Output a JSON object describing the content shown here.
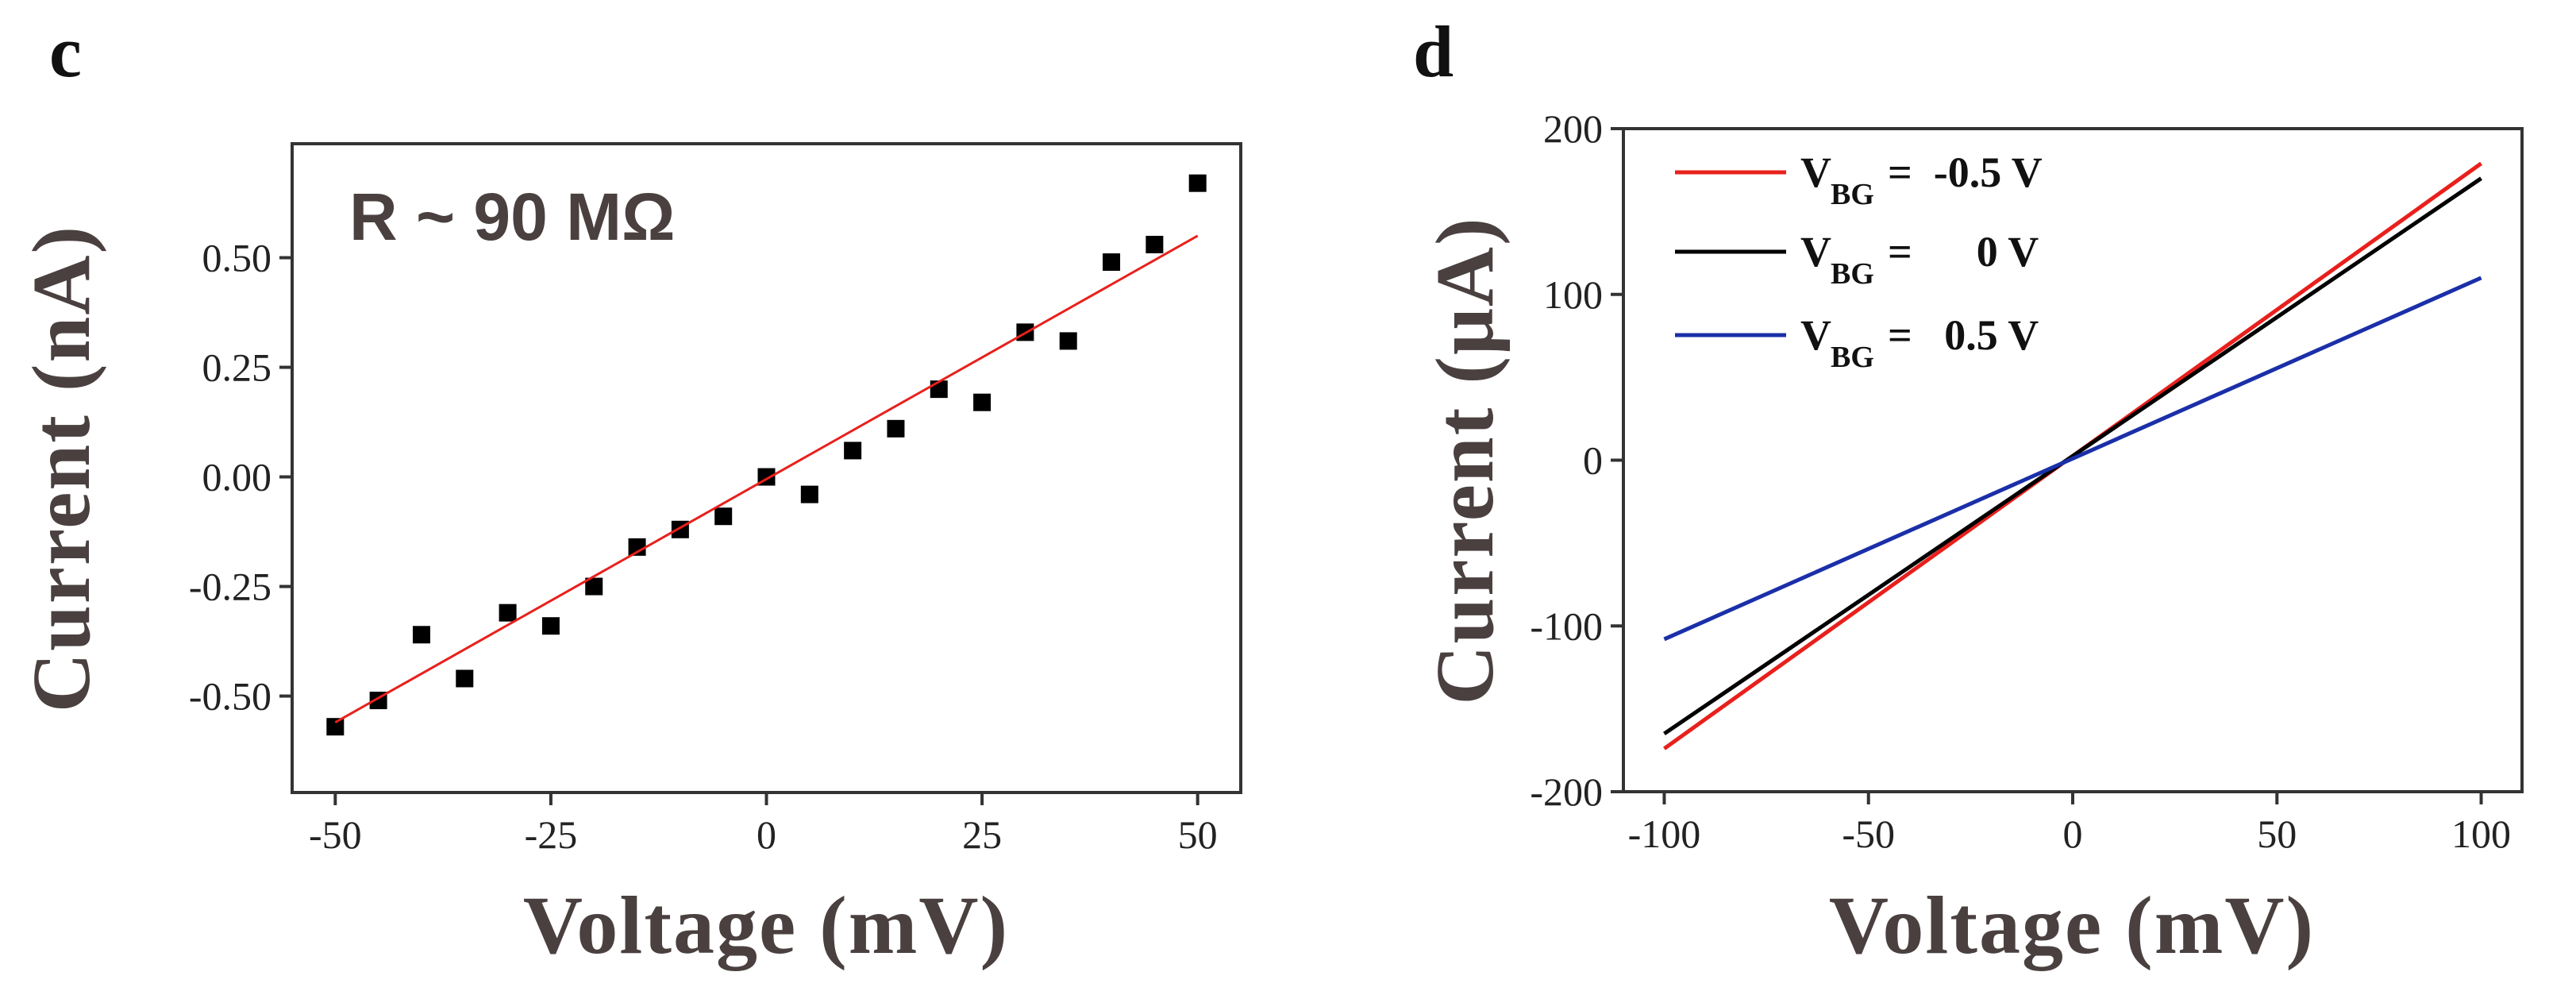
{
  "chart_data": [
    {
      "type": "scatter",
      "panel_label": "c",
      "xlabel": "Voltage (mV)",
      "ylabel": "Current (nA)",
      "xlim": [
        -55,
        55
      ],
      "ylim": [
        -0.72,
        0.76
      ],
      "x_ticks": [
        -50,
        -25,
        0,
        25,
        50
      ],
      "x_tick_labels": [
        "-50",
        "-25",
        "0",
        "25",
        "50"
      ],
      "y_ticks": [
        -0.5,
        -0.25,
        0,
        0.25,
        0.5
      ],
      "y_tick_labels": [
        "-0.50",
        "-0.25",
        "0.00",
        "0.25",
        "0.50"
      ],
      "annotation": "R ~ 90 MΩ",
      "grid": false,
      "series": [
        {
          "kind": "points",
          "color": "#000000",
          "x": [
            -50,
            -45,
            -40,
            -35,
            -30,
            -25,
            -20,
            -15,
            -10,
            -5,
            0,
            5,
            10,
            15,
            20,
            25,
            30,
            35,
            40,
            45,
            50
          ],
          "y": [
            -0.57,
            -0.51,
            -0.36,
            -0.46,
            -0.31,
            -0.34,
            -0.25,
            -0.16,
            -0.12,
            -0.09,
            0.0,
            -0.04,
            0.06,
            0.11,
            0.2,
            0.17,
            0.33,
            0.31,
            0.49,
            0.53,
            0.67
          ]
        },
        {
          "kind": "fit-line",
          "color": "#e8201c",
          "x": [
            -50,
            50
          ],
          "y": [
            -0.56,
            0.55
          ]
        }
      ]
    },
    {
      "type": "line",
      "panel_label": "d",
      "xlabel": "Voltage (mV)",
      "ylabel": "Current (μA)",
      "xlim": [
        -110,
        110
      ],
      "ylim": [
        -200,
        200
      ],
      "x_ticks": [
        -100,
        -50,
        0,
        50,
        100
      ],
      "x_tick_labels": [
        "-100",
        "-50",
        "0",
        "50",
        "100"
      ],
      "y_ticks": [
        -200,
        -100,
        0,
        100,
        200
      ],
      "y_tick_labels": [
        "-200",
        "-100",
        "0",
        "100",
        "200"
      ],
      "legend_position": "top-left",
      "grid": false,
      "series": [
        {
          "legend_main": "V",
          "legend_sub": "BG",
          "legend_value": "=  -0.5 V",
          "color": "#e8201c",
          "x": [
            -100,
            100
          ],
          "y": [
            -174,
            179
          ]
        },
        {
          "legend_main": "V",
          "legend_sub": "BG",
          "legend_value": "=      0 V",
          "color": "#000000",
          "x": [
            -100,
            100
          ],
          "y": [
            -165,
            170
          ]
        },
        {
          "legend_main": "V",
          "legend_sub": "BG",
          "legend_value": "=   0.5 V",
          "color": "#1a2fa8",
          "x": [
            -100,
            100
          ],
          "y": [
            -108,
            110
          ]
        }
      ]
    }
  ]
}
